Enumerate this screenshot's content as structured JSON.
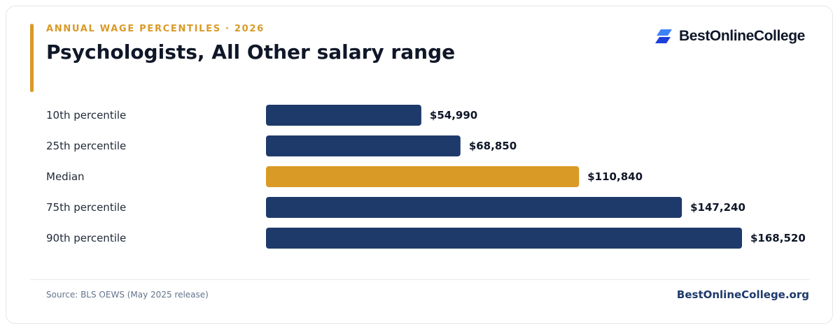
{
  "header": {
    "eyebrow": "ANNUAL WAGE PERCENTILES · 2026",
    "title": "Psychologists, All Other salary range"
  },
  "brand": {
    "logo_text": "BestOnlineCollege",
    "logo_icon": "stacked-parallelogram-icon",
    "site": "BestOnlineCollege.org"
  },
  "footer": {
    "source": "Source: BLS OEWS (May 2025 release)"
  },
  "colors": {
    "bar_primary": "#1e3a6b",
    "bar_highlight": "#d99a26",
    "title": "#0f1728",
    "eyebrow": "#d99a26",
    "label": "#1f2937",
    "source": "#64748b",
    "divider": "#e5e7eb",
    "logo_blue_dark": "#1d3fd8",
    "logo_blue_light": "#3b82f6"
  },
  "chart_data": {
    "type": "bar",
    "orientation": "horizontal",
    "categories": [
      "10th percentile",
      "25th percentile",
      "Median",
      "75th percentile",
      "90th percentile"
    ],
    "values": [
      54990,
      68850,
      110840,
      147240,
      168520
    ],
    "value_labels": [
      "$54,990",
      "$68,850",
      "$110,840",
      "$147,240",
      "$168,520"
    ],
    "highlight_index": 2,
    "xlim": [
      0,
      168520
    ],
    "grid": false,
    "legend": "none"
  }
}
